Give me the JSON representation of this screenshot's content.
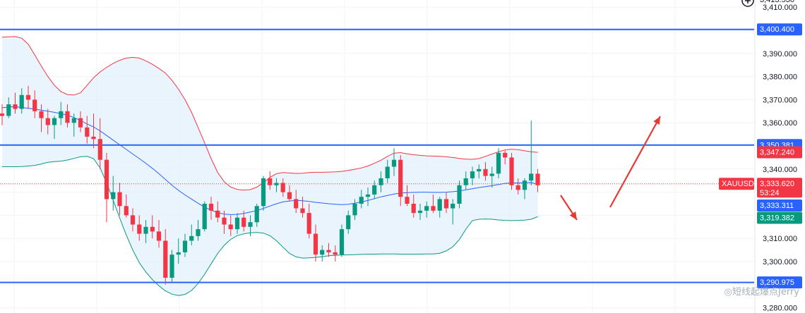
{
  "chart_data": {
    "type": "candlestick",
    "symbol": "XAUUSD",
    "y_range": [
      3276,
      3414
    ],
    "y_ticks": [
      "3,280.000",
      "3,290.000",
      "3,300.000",
      "3,310.000",
      "3,320.000",
      "3,330.000",
      "3,340.000",
      "3,350.000",
      "3,360.000",
      "3,370.000",
      "3,380.000",
      "3,390.000",
      "3,400.000",
      "3,410.000"
    ],
    "y_tick_values": [
      3280,
      3290,
      3300,
      3310,
      3320,
      3330,
      3340,
      3350,
      3360,
      3370,
      3380,
      3390,
      3400,
      3410
    ],
    "top_partial_label": "3,413.530",
    "horizontal_levels": [
      {
        "value": 3400.4,
        "label": "3,400.400",
        "color": "#2962ff"
      },
      {
        "value": 3350.381,
        "label": "3,350.381",
        "color": "#2962ff"
      },
      {
        "value": 3290.975,
        "label": "3,290.975",
        "color": "#2962ff"
      }
    ],
    "price_tags": [
      {
        "value": 3347.24,
        "label": "3,347.240",
        "color": "#f23645"
      },
      {
        "value": 3333.62,
        "label": "3,333.620",
        "sublabel": "53:24",
        "color": "#f23645",
        "symbol": "XAUUSD"
      },
      {
        "value": 3333.311,
        "label": "3,333.311",
        "color": "#2962ff"
      },
      {
        "value": 3319.382,
        "label": "3,319.382",
        "color": "#089981"
      }
    ],
    "current_price": 3333.62,
    "candles": [
      [
        3364,
        3368,
        3359,
        3363
      ],
      [
        3363,
        3371,
        3362,
        3368
      ],
      [
        3368,
        3373,
        3364,
        3366
      ],
      [
        3366,
        3375,
        3364,
        3372
      ],
      [
        3372,
        3376,
        3366,
        3370
      ],
      [
        3370,
        3374,
        3362,
        3365
      ],
      [
        3365,
        3368,
        3356,
        3362
      ],
      [
        3362,
        3366,
        3355,
        3359
      ],
      [
        3359,
        3363,
        3353,
        3362
      ],
      [
        3362,
        3369,
        3359,
        3365
      ],
      [
        3365,
        3368,
        3358,
        3360
      ],
      [
        3360,
        3364,
        3354,
        3362
      ],
      [
        3362,
        3365,
        3356,
        3358
      ],
      [
        3358,
        3363,
        3351,
        3354
      ],
      [
        3354,
        3364,
        3349,
        3353
      ],
      [
        3353,
        3362,
        3340,
        3344
      ],
      [
        3344,
        3347,
        3317,
        3327
      ],
      [
        3327,
        3337,
        3322,
        3330
      ],
      [
        3330,
        3334,
        3320,
        3324
      ],
      [
        3324,
        3329,
        3319,
        3320
      ],
      [
        3320,
        3323,
        3313,
        3316
      ],
      [
        3316,
        3320,
        3309,
        3312
      ],
      [
        3312,
        3318,
        3308,
        3315
      ],
      [
        3315,
        3320,
        3310,
        3313
      ],
      [
        3313,
        3318,
        3306,
        3309
      ],
      [
        3309,
        3314,
        3290,
        3293
      ],
      [
        3293,
        3305,
        3291,
        3303
      ],
      [
        3303,
        3310,
        3299,
        3304
      ],
      [
        3304,
        3312,
        3302,
        3309
      ],
      [
        3309,
        3316,
        3307,
        3311
      ],
      [
        3311,
        3318,
        3309,
        3314
      ],
      [
        3314,
        3326,
        3313,
        3325
      ],
      [
        3325,
        3328,
        3318,
        3322
      ],
      [
        3322,
        3326,
        3317,
        3319
      ],
      [
        3319,
        3322,
        3312,
        3316
      ],
      [
        3316,
        3320,
        3311,
        3314
      ],
      [
        3314,
        3321,
        3312,
        3319
      ],
      [
        3319,
        3322,
        3313,
        3315
      ],
      [
        3315,
        3320,
        3311,
        3317
      ],
      [
        3317,
        3325,
        3315,
        3324
      ],
      [
        3324,
        3337,
        3322,
        3336
      ],
      [
        3336,
        3339,
        3331,
        3333
      ],
      [
        3333,
        3336,
        3330,
        3334
      ],
      [
        3334,
        3336,
        3328,
        3330
      ],
      [
        3330,
        3333,
        3326,
        3327
      ],
      [
        3327,
        3331,
        3321,
        3323
      ],
      [
        3323,
        3328,
        3319,
        3321
      ],
      [
        3321,
        3325,
        3310,
        3312
      ],
      [
        3312,
        3316,
        3300,
        3303
      ],
      [
        3303,
        3307,
        3300,
        3305
      ],
      [
        3305,
        3308,
        3302,
        3304
      ],
      [
        3304,
        3307,
        3300,
        3303
      ],
      [
        3303,
        3316,
        3302,
        3314
      ],
      [
        3314,
        3322,
        3312,
        3320
      ],
      [
        3320,
        3327,
        3318,
        3325
      ],
      [
        3325,
        3331,
        3323,
        3328
      ],
      [
        3328,
        3332,
        3324,
        3329
      ],
      [
        3329,
        3335,
        3327,
        3333
      ],
      [
        3333,
        3339,
        3330,
        3336
      ],
      [
        3336,
        3344,
        3334,
        3341
      ],
      [
        3341,
        3349,
        3337,
        3344
      ],
      [
        3344,
        3346,
        3324,
        3328
      ],
      [
        3328,
        3333,
        3324,
        3325
      ],
      [
        3325,
        3329,
        3319,
        3321
      ],
      [
        3321,
        3325,
        3318,
        3322
      ],
      [
        3322,
        3326,
        3319,
        3324
      ],
      [
        3324,
        3329,
        3321,
        3322
      ],
      [
        3322,
        3328,
        3319,
        3327
      ],
      [
        3327,
        3330,
        3321,
        3323
      ],
      [
        3323,
        3327,
        3316,
        3325
      ],
      [
        3325,
        3335,
        3323,
        3333
      ],
      [
        3333,
        3339,
        3331,
        3336
      ],
      [
        3336,
        3341,
        3333,
        3339
      ],
      [
        3339,
        3342,
        3336,
        3340
      ],
      [
        3340,
        3343,
        3335,
        3337
      ],
      [
        3337,
        3341,
        3332,
        3338
      ],
      [
        3338,
        3349,
        3336,
        3347
      ],
      [
        3347,
        3348,
        3342,
        3345
      ],
      [
        3345,
        3347,
        3331,
        3333
      ],
      [
        3333,
        3336,
        3329,
        3331
      ],
      [
        3331,
        3336,
        3327,
        3335
      ],
      [
        3335,
        3361,
        3333,
        3338
      ],
      [
        3338,
        3340,
        3330,
        3333
      ]
    ],
    "moving_average": [
      3366.5,
      3366.8,
      3367,
      3366.6,
      3366.3,
      3365.9,
      3365.5,
      3365,
      3364.5,
      3364,
      3363.3,
      3362.3,
      3361,
      3359.5,
      3358.2,
      3356.5,
      3354.5,
      3352.5,
      3350.5,
      3348.5,
      3346.5,
      3344.5,
      3342.5,
      3340.3,
      3338,
      3335.5,
      3333,
      3330.8,
      3328.8,
      3327,
      3325.2,
      3323.5,
      3322.2,
      3321.2,
      3320.5,
      3320.3,
      3320.4,
      3320.8,
      3321.4,
      3322,
      3323,
      3324,
      3325,
      3325.8,
      3326.2,
      3326.5,
      3326.3,
      3326,
      3325.6,
      3325.3,
      3325,
      3324.8,
      3324.6,
      3324.8,
      3325.2,
      3325.8,
      3326.4,
      3327.2,
      3328,
      3328.6,
      3329.2,
      3329.6,
      3329.8,
      3329.9,
      3330,
      3330,
      3329.9,
      3329.9,
      3330,
      3330.2,
      3330.5,
      3331,
      3331.5,
      3332,
      3332.4,
      3332.8,
      3333.3,
      3333.8,
      3334,
      3334,
      3334.1,
      3334.2,
      3333.3
    ],
    "upper_band": [
      3397,
      3397.2,
      3397.3,
      3396.6,
      3394,
      3389.3,
      3384.5,
      3380,
      3376.2,
      3373.5,
      3372.2,
      3372,
      3373,
      3376.2,
      3379.5,
      3382,
      3384,
      3385.7,
      3387,
      3388,
      3388.3,
      3388,
      3386.8,
      3385.3,
      3383.5,
      3381.5,
      3378.4,
      3374.5,
      3370,
      3364.5,
      3358,
      3351.3,
      3344.5,
      3338.5,
      3334.5,
      3332.2,
      3331.2,
      3330.9,
      3331.1,
      3332.2,
      3334.1,
      3336.4,
      3338,
      3338.5,
      3338.3,
      3338.1,
      3338.2,
      3338.5,
      3338.6,
      3338.6,
      3338.7,
      3338.8,
      3339,
      3339.4,
      3339.9,
      3340.5,
      3341.3,
      3342.5,
      3343.8,
      3345.5,
      3346.9,
      3347.1,
      3346.6,
      3346.2,
      3345.9,
      3345.7,
      3345.6,
      3345.5,
      3345.3,
      3345,
      3344.6,
      3344.3,
      3344.2,
      3344.5,
      3345.5,
      3346.5,
      3347.5,
      3348.3,
      3348.6,
      3348.4,
      3347.9,
      3347.5,
      3347.24
    ],
    "lower_band": [
      3341,
      3341,
      3341,
      3341.1,
      3341.3,
      3341.6,
      3342.2,
      3342.9,
      3343.2,
      3343.4,
      3343.9,
      3344.6,
      3345.3,
      3345.5,
      3344.5,
      3340.5,
      3334,
      3326.5,
      3318.8,
      3311.5,
      3305,
      3299.5,
      3295.5,
      3292.2,
      3289.5,
      3287.3,
      3285.9,
      3285.3,
      3285.8,
      3287.5,
      3290.5,
      3294.5,
      3299,
      3303.5,
      3307,
      3309.6,
      3311.2,
      3312,
      3312.4,
      3312.6,
      3312.3,
      3311.2,
      3309,
      3306.2,
      3303.5,
      3302,
      3301.5,
      3301.6,
      3301.8,
      3302.1,
      3302.5,
      3302.7,
      3302.8,
      3302.9,
      3303,
      3303.1,
      3303.2,
      3303.2,
      3303.3,
      3303.3,
      3303.3,
      3303.2,
      3303.2,
      3303.2,
      3303.2,
      3303.3,
      3303.3,
      3303.6,
      3304.6,
      3306.4,
      3309.5,
      3314,
      3317.7,
      3318.3,
      3318.4,
      3318.3,
      3318,
      3317.8,
      3317.7,
      3317.8,
      3317.9,
      3318.3,
      3319.382
    ],
    "arrows": [
      {
        "direction": "down"
      },
      {
        "direction": "up"
      }
    ]
  },
  "watermark": "◎短线起爆点Jerry",
  "colors": {
    "up": "#089981",
    "down": "#f23645",
    "ma": "#2962ff",
    "upper_band": "#f23645",
    "lower_band": "#089981",
    "band_fill": "#e3f0fb",
    "level_line": "#2962ff",
    "arrow": "#e53935",
    "grid": "#f0f3fa"
  }
}
